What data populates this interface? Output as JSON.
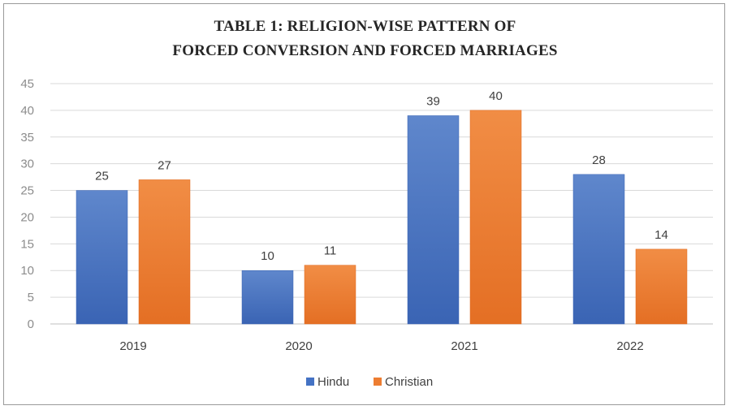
{
  "chart_data": {
    "type": "bar",
    "title": "TABLE 1: RELIGION-WISE PATTERN OF",
    "subtitle": "FORCED CONVERSION AND FORCED MARRIAGES",
    "categories": [
      "2019",
      "2020",
      "2021",
      "2022"
    ],
    "series": [
      {
        "name": "Hindu",
        "values": [
          25,
          10,
          39,
          28
        ],
        "color": "#4472C4"
      },
      {
        "name": "Christian",
        "values": [
          27,
          11,
          40,
          14
        ],
        "color": "#ED7D31"
      }
    ],
    "xlabel": "",
    "ylabel": "",
    "ylim": [
      0,
      45
    ],
    "yticks": [
      0,
      5,
      10,
      15,
      20,
      25,
      30,
      35,
      40,
      45
    ],
    "grid": true,
    "legend": "bottom",
    "data_labels": true
  }
}
